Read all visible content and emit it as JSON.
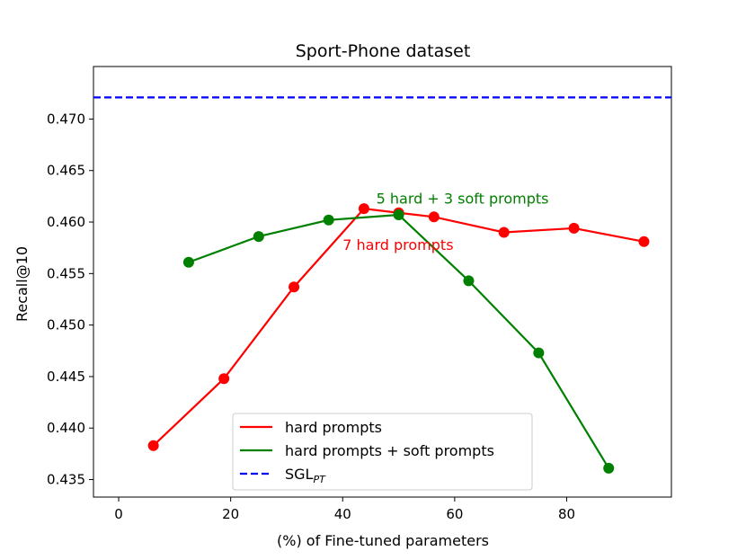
{
  "chart_data": {
    "type": "line",
    "title": "Sport-Phone dataset",
    "xlabel": "(%) of Fine-tuned parameters",
    "ylabel": "Recall@10",
    "xlim": [
      -4.5,
      98.7
    ],
    "ylim": [
      0.4333,
      0.4751
    ],
    "x_ticks": [
      0,
      20,
      40,
      60,
      80
    ],
    "y_ticks": [
      0.435,
      0.44,
      0.445,
      0.45,
      0.455,
      0.46,
      0.465,
      0.47
    ],
    "x_tick_labels": [
      "0",
      "20",
      "40",
      "60",
      "80"
    ],
    "y_tick_labels": [
      "0.435",
      "0.440",
      "0.445",
      "0.450",
      "0.455",
      "0.460",
      "0.465",
      "0.470"
    ],
    "grid": false,
    "legend_position": "lower-center",
    "series": [
      {
        "name": "hard prompts",
        "color": "#ff0000",
        "style": "solid-with-markers",
        "x": [
          6.2,
          18.8,
          31.3,
          43.8,
          50.0,
          56.3,
          68.8,
          81.3,
          93.8
        ],
        "y": [
          0.4383,
          0.4448,
          0.4537,
          0.4613,
          0.4609,
          0.4605,
          0.459,
          0.4594,
          0.4581
        ]
      },
      {
        "name": "hard prompts + soft prompts",
        "color": "#008000",
        "style": "solid-with-markers",
        "x": [
          12.5,
          25.0,
          37.5,
          50.0,
          62.5,
          75.0,
          87.5
        ],
        "y": [
          0.4561,
          0.4586,
          0.4602,
          0.4607,
          0.4543,
          0.4473,
          0.4361
        ]
      },
      {
        "name": "SGL",
        "name_subscript": "PT",
        "color": "#0000ff",
        "style": "dashed-horizontal",
        "y": 0.4721
      }
    ],
    "annotations": [
      {
        "text": "5 hard + 3 soft prompts",
        "color": "#008000",
        "x": 46.0,
        "y": 0.4618
      },
      {
        "text": "7 hard prompts",
        "color": "#ff0000",
        "x": 40.0,
        "y": 0.4573
      }
    ]
  }
}
